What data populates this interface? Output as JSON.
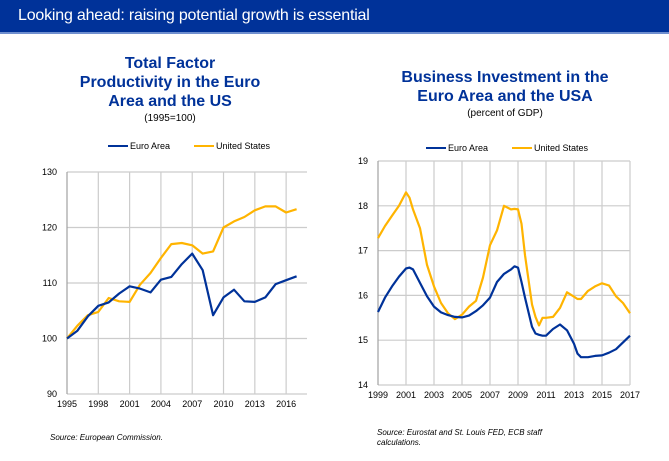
{
  "header": {
    "title": "Looking ahead: raising potential growth is essential"
  },
  "colors": {
    "header_bg": "#003299",
    "euro_area": "#003299",
    "united_states": "#FFB400",
    "grid": "#cccccc"
  },
  "chart_data": [
    {
      "type": "line",
      "title": "Total Factor Productivity in the Euro Area and the US",
      "title_lines": [
        "Total Factor",
        "Productivity in the Euro",
        "Area and the US"
      ],
      "subtitle": "(1995=100)",
      "xlabel": "",
      "ylabel": "",
      "xlim": [
        1995,
        2017.8
      ],
      "ylim": [
        90,
        130
      ],
      "x_ticks": [
        "1995",
        "1998",
        "2001",
        "2004",
        "2007",
        "2010",
        "2013",
        "2016"
      ],
      "y_ticks": [
        "90",
        "100",
        "110",
        "120",
        "130"
      ],
      "grid": true,
      "legend_position": "top",
      "legend": [
        "Euro Area",
        "United States"
      ],
      "x": [
        1995,
        1996,
        1997,
        1998,
        1999,
        2000,
        2001,
        2002,
        2003,
        2004,
        2005,
        2006,
        2007,
        2008,
        2009,
        2010,
        2011,
        2012,
        2013,
        2014,
        2015,
        2016,
        2017
      ],
      "series": [
        {
          "name": "Euro Area",
          "values": [
            100.0,
            101.4,
            104.0,
            105.9,
            106.5,
            108.1,
            109.4,
            109.0,
            108.3,
            110.6,
            111.1,
            113.4,
            115.3,
            112.3,
            104.2,
            107.4,
            108.8,
            106.7,
            106.6,
            107.4,
            109.8,
            110.5,
            111.2
          ]
        },
        {
          "name": "United States",
          "values": [
            100.0,
            102.3,
            104.2,
            104.8,
            107.3,
            106.7,
            106.6,
            109.7,
            111.8,
            114.5,
            117.0,
            117.2,
            116.8,
            115.3,
            115.7,
            120.0,
            121.1,
            121.9,
            123.1,
            123.8,
            123.8,
            122.7,
            123.3
          ]
        }
      ],
      "source": "Source: European Commission."
    },
    {
      "type": "line",
      "title": "Business Investment in the Euro Area and the USA",
      "title_lines": [
        "Business Investment in the",
        "Euro Area and the USA"
      ],
      "subtitle": "(percent of GDP)",
      "xlabel": "",
      "ylabel": "",
      "xlim": [
        1999,
        2017
      ],
      "ylim": [
        14,
        19
      ],
      "x_ticks": [
        "1999",
        "2001",
        "2003",
        "2005",
        "2007",
        "2009",
        "2011",
        "2013",
        "2015",
        "2017"
      ],
      "y_ticks": [
        "14",
        "15",
        "16",
        "17",
        "18",
        "19"
      ],
      "grid": true,
      "legend_position": "top",
      "legend": [
        "Euro Area",
        "United States"
      ],
      "x": [
        1999.0,
        1999.5,
        2000.0,
        2000.5,
        2001.0,
        2001.25,
        2001.5,
        2002.0,
        2002.5,
        2003.0,
        2003.5,
        2004.0,
        2004.5,
        2005.0,
        2005.5,
        2006.0,
        2006.5,
        2007.0,
        2007.5,
        2008.0,
        2008.5,
        2008.75,
        2009.0,
        2009.25,
        2009.5,
        2010.0,
        2010.25,
        2010.5,
        2010.75,
        2011.0,
        2011.5,
        2012.0,
        2012.5,
        2013.0,
        2013.25,
        2013.5,
        2014.0,
        2014.5,
        2015.0,
        2015.5,
        2016.0,
        2016.5,
        2017.0
      ],
      "series": [
        {
          "name": "Euro Area",
          "values": [
            15.63,
            15.95,
            16.2,
            16.42,
            16.6,
            16.62,
            16.58,
            16.28,
            15.98,
            15.75,
            15.62,
            15.56,
            15.52,
            15.51,
            15.55,
            15.65,
            15.78,
            15.95,
            16.3,
            16.48,
            16.58,
            16.65,
            16.62,
            16.3,
            15.95,
            15.3,
            15.15,
            15.12,
            15.1,
            15.1,
            15.25,
            15.35,
            15.22,
            14.92,
            14.7,
            14.62,
            14.62,
            14.65,
            14.66,
            14.72,
            14.8,
            14.95,
            15.1
          ]
        },
        {
          "name": "United States",
          "values": [
            17.28,
            17.55,
            17.78,
            18.0,
            18.3,
            18.18,
            17.92,
            17.5,
            16.68,
            16.2,
            15.83,
            15.6,
            15.47,
            15.57,
            15.75,
            15.88,
            16.4,
            17.12,
            17.45,
            18.0,
            17.92,
            17.93,
            17.92,
            17.6,
            16.9,
            15.8,
            15.52,
            15.33,
            15.5,
            15.5,
            15.52,
            15.72,
            16.07,
            15.97,
            15.92,
            15.92,
            16.1,
            16.2,
            16.27,
            16.22,
            15.98,
            15.83,
            15.6
          ]
        }
      ],
      "source_lines": [
        "Source: Eurostat and St. Louis FED, ECB staff",
        "calculations."
      ]
    }
  ]
}
